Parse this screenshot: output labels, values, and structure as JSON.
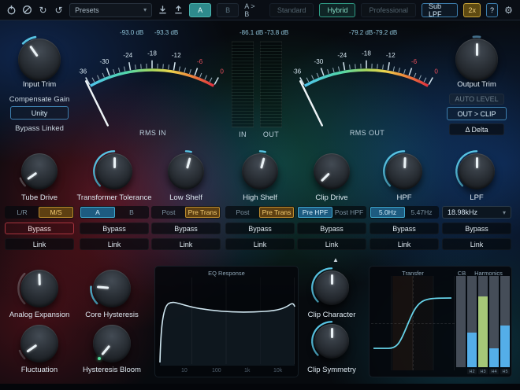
{
  "toolbar": {
    "presets": "Presets",
    "a": "A",
    "b": "B",
    "ab_compare": "A > B",
    "modes": {
      "standard": "Standard",
      "hybrid": "Hybrid",
      "professional": "Professional"
    },
    "sub_lpf": "Sub LPF",
    "oversample": "2x",
    "help": "?"
  },
  "readouts": {
    "rms_in_l": "-93.0 dB",
    "rms_in_r": "-93.3 dB",
    "bar_in": "-86.1 dB",
    "bar_out": "-73.8 dB",
    "rms_out_l": "-79.2 dB",
    "rms_out_r": "-79.2 dB"
  },
  "meters": {
    "scale": [
      "-36",
      "-30",
      "-24",
      "-18",
      "-12",
      "-6",
      "0"
    ],
    "rms_in_label": "RMS IN",
    "rms_out_label": "RMS OUT",
    "bar_in_label": "IN",
    "bar_out_label": "OUT"
  },
  "input_section": {
    "label": "Input Trim",
    "compensate": "Compensate Gain",
    "unity": "Unity",
    "bypass_linked": "Bypass Linked"
  },
  "output_section": {
    "label": "Output Trim",
    "auto_level": "AUTO LEVEL",
    "out_clip": "OUT > CLIP",
    "delta": "Δ Delta"
  },
  "channels": [
    {
      "label": "Tube Drive",
      "opt_a": "L/R",
      "opt_b": "M/S",
      "bypass": "Bypass",
      "link": "Link"
    },
    {
      "label": "Transformer Tolerance",
      "opt_a": "A",
      "opt_b": "B",
      "bypass": "Bypass",
      "link": "Link"
    },
    {
      "label": "Low Shelf",
      "opt_a": "Post",
      "opt_b": "Pre Trans",
      "bypass": "Bypass",
      "link": "Link"
    },
    {
      "label": "High Shelf",
      "opt_a": "Post",
      "opt_b": "Pre Trans",
      "bypass": "Bypass",
      "link": "Link"
    },
    {
      "label": "Clip Drive",
      "opt_a": "Pre HPF",
      "opt_b": "Post HPF",
      "bypass": "Bypass",
      "link": "Link"
    },
    {
      "label": "HPF",
      "opt_a": "5.0Hz",
      "opt_b": "5.47Hz",
      "bypass": "Bypass",
      "link": "Link"
    },
    {
      "label": "LPF",
      "dropdown": "18.98kHz",
      "bypass": "Bypass",
      "link": "Link"
    }
  ],
  "collapse_arrow": "▲",
  "bottom": {
    "knobs": {
      "analog_expansion": "Analog Expansion",
      "core_hysteresis": "Core Hysteresis",
      "fluctuation": "Fluctuation",
      "hysteresis_bloom": "Hysteresis Bloom",
      "clip_character": "Clip Character",
      "clip_symmetry": "Clip Symmetry"
    },
    "eq": {
      "title": "EQ Response",
      "ticks": [
        "10",
        "100",
        "1k",
        "10k"
      ]
    },
    "transfer": {
      "title": "Transfer",
      "cb": "CB",
      "harmonics": "Harmonics",
      "bars": [
        {
          "label": "H2",
          "pct": 38,
          "color": "#54aee8"
        },
        {
          "label": "H3",
          "pct": 78,
          "color": "#a6c878"
        },
        {
          "label": "H4",
          "pct": 21,
          "color": "#54aee8"
        },
        {
          "label": "H5",
          "pct": 46,
          "color": "#54aee8"
        }
      ]
    }
  },
  "colors": {
    "accent_cyan": "#5ac8e8",
    "accent_teal": "#2e8a8c",
    "accent_gold": "#c9a53a",
    "accent_blue": "#3f8fc9",
    "warn_red": "#e0505c"
  }
}
